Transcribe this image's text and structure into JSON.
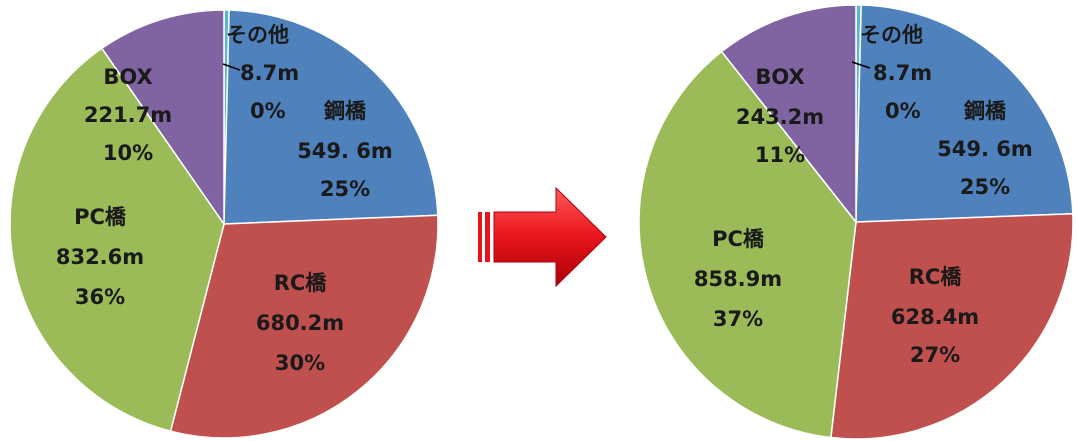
{
  "chart_data": [
    {
      "type": "pie",
      "slices": [
        {
          "name": "その他",
          "length": "8.7m",
          "value": 8.7,
          "percent": "0%",
          "color": "#5ab4d6"
        },
        {
          "name": "鋼橋",
          "length": "549. 6m",
          "value": 549.6,
          "percent": "25%",
          "color": "#4f81bd"
        },
        {
          "name": "RC橋",
          "length": "680.2m",
          "value": 680.2,
          "percent": "30%",
          "color": "#c0504d"
        },
        {
          "name": "PC橋",
          "length": "832.6m",
          "value": 832.6,
          "percent": "36%",
          "color": "#9bbb59"
        },
        {
          "name": "BOX",
          "length": "221.7m",
          "value": 221.7,
          "percent": "10%",
          "color": "#8064a2"
        }
      ]
    },
    {
      "type": "pie",
      "slices": [
        {
          "name": "その他",
          "length": "8.7m",
          "value": 8.7,
          "percent": "0%",
          "color": "#5ab4d6"
        },
        {
          "name": "鋼橋",
          "length": "549. 6m",
          "value": 549.6,
          "percent": "25%",
          "color": "#4f81bd"
        },
        {
          "name": "RC橋",
          "length": "628.4m",
          "value": 628.4,
          "percent": "27%",
          "color": "#c0504d"
        },
        {
          "name": "PC橋",
          "length": "858.9m",
          "value": 858.9,
          "percent": "37%",
          "color": "#9bbb59"
        },
        {
          "name": "BOX",
          "length": "243.2m",
          "value": 243.2,
          "percent": "11%",
          "color": "#8064a2"
        }
      ]
    }
  ],
  "arrow": {
    "color": "#e8141b"
  }
}
